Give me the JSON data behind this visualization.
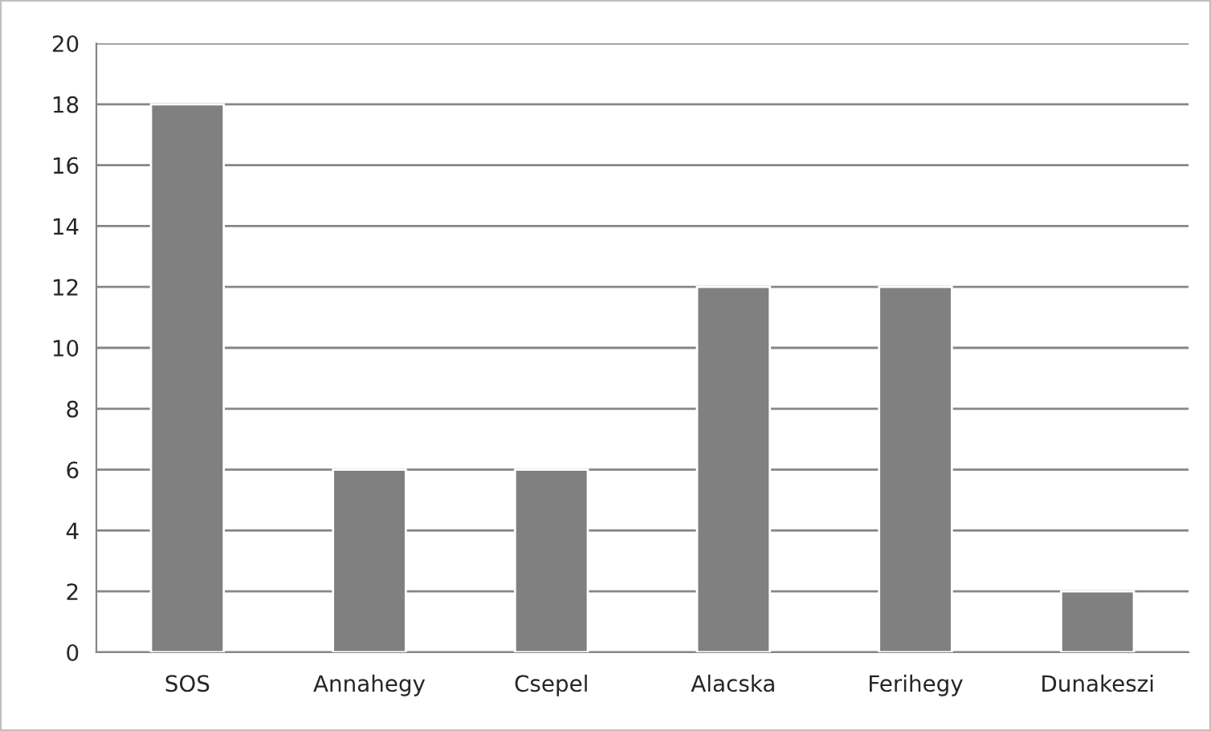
{
  "chart_data": {
    "type": "bar",
    "categories": [
      "SOS",
      "Annahegy",
      "Csepel",
      "Alacska",
      "Ferihegy",
      "Dunakeszi"
    ],
    "values": [
      18,
      6,
      6,
      12,
      12,
      2
    ],
    "color": "#808080",
    "ylim": [
      0,
      20
    ],
    "yticks": [
      0,
      2,
      4,
      6,
      8,
      10,
      12,
      14,
      16,
      18,
      20
    ],
    "grid": "y",
    "legend": false
  }
}
